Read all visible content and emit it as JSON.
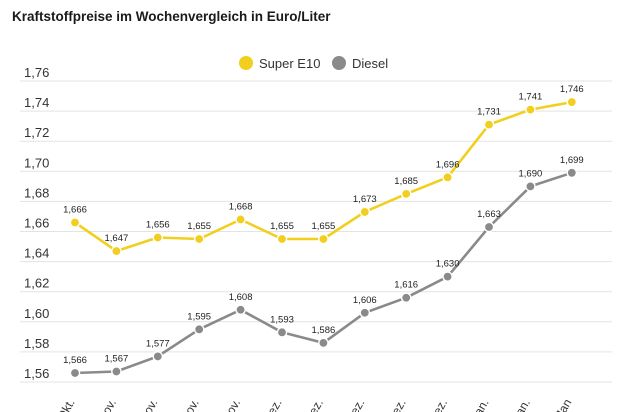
{
  "chart_data": {
    "type": "line",
    "title": "Kraftstoffpreise im Wochenvergleich in Euro/Liter",
    "categories": [
      "Okt.",
      "Nov.",
      "Nov.",
      "Nov.",
      "Nov.",
      "Dez.",
      "Dez.",
      "Dez.",
      "Dez.",
      "Dez.",
      "Jan.",
      "Jan.",
      "Jan"
    ],
    "ylim": [
      1.55,
      1.77
    ],
    "yticks": [
      "1,56",
      "1,58",
      "1,60",
      "1,62",
      "1,64",
      "1,66",
      "1,68",
      "1,70",
      "1,72",
      "1,74",
      "1,76"
    ],
    "ytick_values": [
      1.56,
      1.58,
      1.6,
      1.62,
      1.64,
      1.66,
      1.68,
      1.7,
      1.72,
      1.74,
      1.76
    ],
    "grid": true,
    "legend_position": "top-center",
    "series": [
      {
        "name": "Super E10",
        "color": "#f2cf1f",
        "values": [
          1.666,
          1.647,
          1.656,
          1.655,
          1.668,
          1.655,
          1.655,
          1.673,
          1.685,
          1.696,
          1.731,
          1.741,
          1.746
        ],
        "labels": [
          "1,666",
          "1,647",
          "1,656",
          "1,655",
          "1,668",
          "1,655",
          "1,655",
          "1,673",
          "1,685",
          "1,696",
          "1,731",
          "1,741",
          "1,746"
        ]
      },
      {
        "name": "Diesel",
        "color": "#8a8a8a",
        "values": [
          1.566,
          1.567,
          1.577,
          1.595,
          1.608,
          1.593,
          1.586,
          1.606,
          1.616,
          1.63,
          1.663,
          1.69,
          1.699
        ],
        "labels": [
          "1,566",
          "1,567",
          "1,577",
          "1,595",
          "1,608",
          "1,593",
          "1,586",
          "1,606",
          "1,616",
          "1,630",
          "1,663",
          "1,690",
          "1,699"
        ]
      }
    ]
  }
}
